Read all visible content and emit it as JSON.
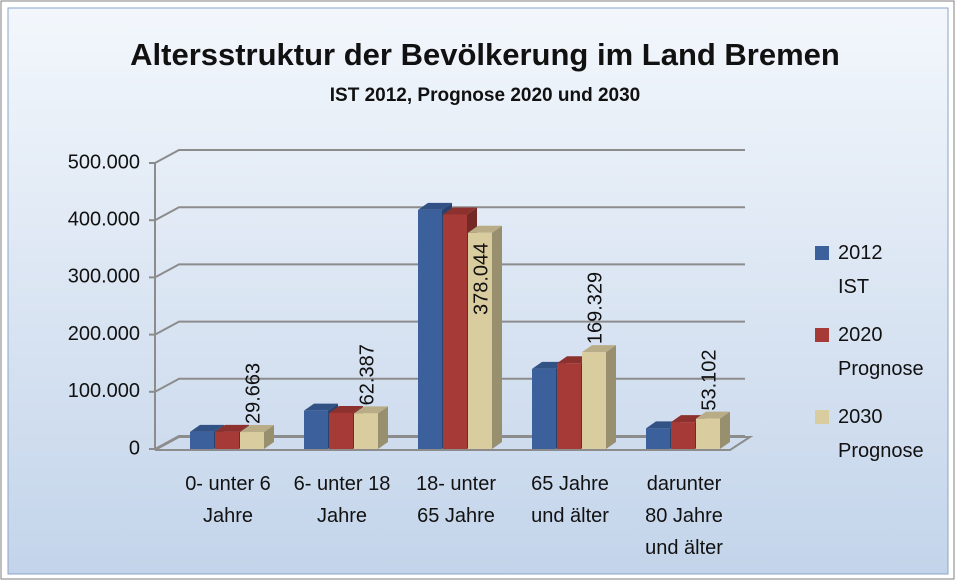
{
  "chart_data": {
    "type": "bar3d",
    "title": "Altersstruktur der Bevölkerung im Land Bremen",
    "subtitle": "IST 2012, Prognose 2020 und 2030",
    "categories": [
      "0- unter 6 Jahre",
      "6- unter 18 Jahre",
      "18- unter 65 Jahre",
      "65 Jahre und älter",
      "darunter 80 Jahre und älter"
    ],
    "series": [
      {
        "name": "2012 IST",
        "color": "#3b609c",
        "values": [
          30000,
          67000,
          418000,
          140000,
          36000
        ]
      },
      {
        "name": "2020 Prognose",
        "color": "#a63a37",
        "values": [
          30000,
          63000,
          410000,
          150000,
          47000
        ]
      },
      {
        "name": "2030 Prognose",
        "color": "#d9cc9e",
        "values": [
          29663,
          62387,
          378044,
          169329,
          53102
        ],
        "value_labels": [
          "29.663",
          "62.387",
          "378.044",
          "169.329",
          "53.102"
        ]
      }
    ],
    "ylim": [
      0,
      500000
    ],
    "yticks": [
      0,
      {
        "value": 100000,
        "label": "100.000"
      },
      {
        "value": 200000,
        "label": "200.000"
      },
      {
        "value": 300000,
        "label": "300.000"
      },
      {
        "value": 400000,
        "label": "400.000"
      },
      {
        "value": 500000,
        "label": "500.000"
      }
    ],
    "grid": true,
    "legend": "right"
  }
}
